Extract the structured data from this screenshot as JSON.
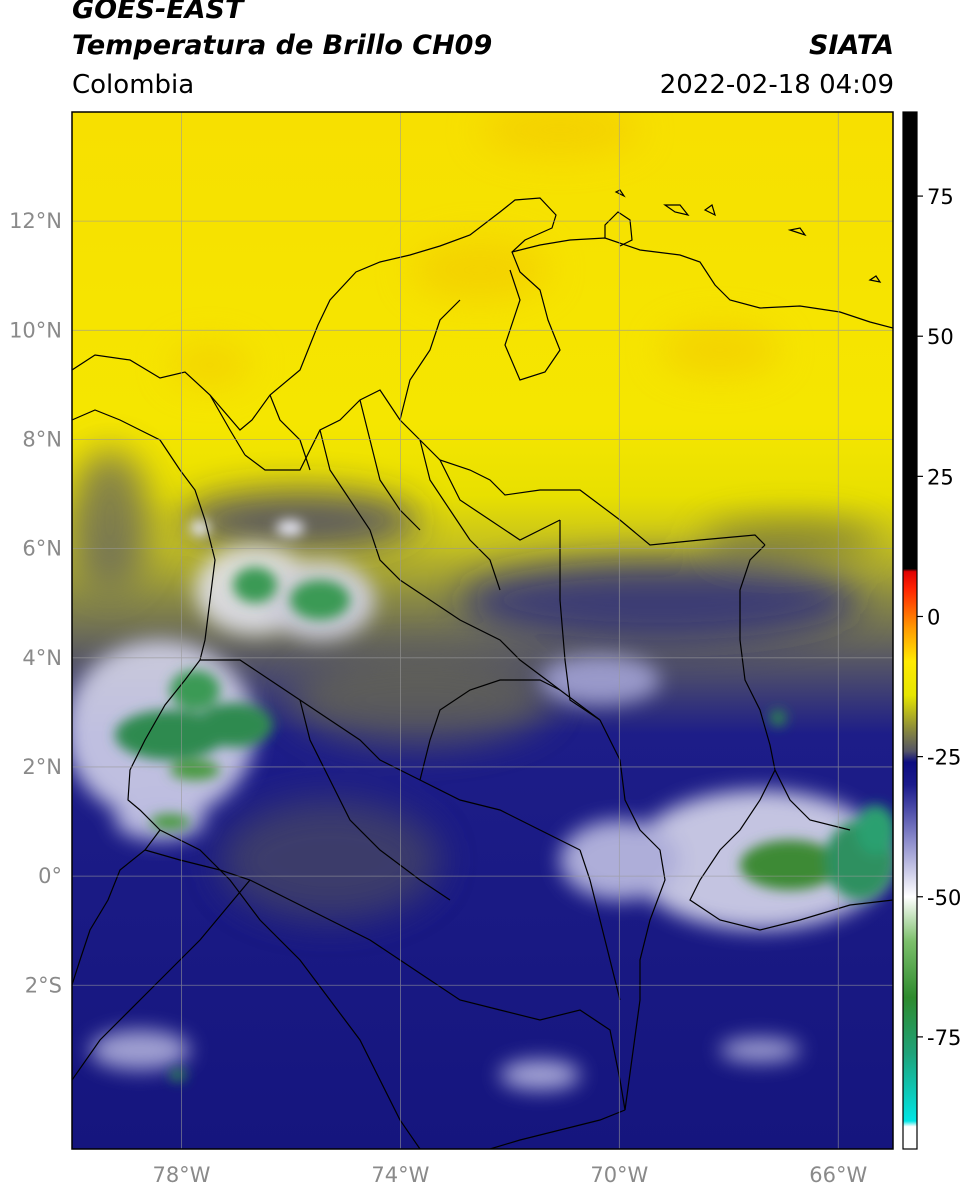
{
  "header": {
    "satellite": "GOES-EAST",
    "product": "Temperatura de Brillo CH09",
    "region": "Colombia",
    "agency": "SIATA",
    "datetime": "2022-02-18 04:09"
  },
  "map": {
    "lon_range": [
      -80,
      -65
    ],
    "lat_range": [
      -5,
      14
    ],
    "lat_ticks": [
      {
        "value": 12,
        "label": "12°N"
      },
      {
        "value": 10,
        "label": "10°N"
      },
      {
        "value": 8,
        "label": "8°N"
      },
      {
        "value": 6,
        "label": "6°N"
      },
      {
        "value": 4,
        "label": "4°N"
      },
      {
        "value": 2,
        "label": "2°N"
      },
      {
        "value": 0,
        "label": "0°"
      },
      {
        "value": -2,
        "label": "2°S"
      }
    ],
    "lon_ticks": [
      {
        "value": -78,
        "label": "78°W"
      },
      {
        "value": -74,
        "label": "74°W"
      },
      {
        "value": -70,
        "label": "70°W"
      },
      {
        "value": -66,
        "label": "66°W"
      }
    ],
    "grid": true
  },
  "colorbar": {
    "range": [
      -95,
      90
    ],
    "ticks": [
      {
        "value": 75,
        "label": "75"
      },
      {
        "value": 50,
        "label": "50"
      },
      {
        "value": 25,
        "label": "25"
      },
      {
        "value": 0,
        "label": "0"
      },
      {
        "value": -25,
        "label": "-25"
      },
      {
        "value": -50,
        "label": "-50"
      },
      {
        "value": -75,
        "label": "-75"
      }
    ],
    "stops": [
      {
        "value": -95,
        "color": "#ffffff"
      },
      {
        "value": -91,
        "color": "#ffffff"
      },
      {
        "value": -90,
        "color": "#00e5e5"
      },
      {
        "value": -78,
        "color": "#1fa37a"
      },
      {
        "value": -68,
        "color": "#2e8b2e"
      },
      {
        "value": -58,
        "color": "#7bbf6a"
      },
      {
        "value": -50,
        "color": "#ffffff"
      },
      {
        "value": -40,
        "color": "#8c8ccc"
      },
      {
        "value": -30,
        "color": "#1a1a8c"
      },
      {
        "value": -26,
        "color": "#0d0d80"
      },
      {
        "value": -24,
        "color": "#555566"
      },
      {
        "value": -20,
        "color": "#8c8c3a"
      },
      {
        "value": -14,
        "color": "#e6e600"
      },
      {
        "value": -8,
        "color": "#ffea00"
      },
      {
        "value": -2,
        "color": "#ff9900"
      },
      {
        "value": 5,
        "color": "#ff2200"
      },
      {
        "value": 8,
        "color": "#e00000"
      },
      {
        "value": 8.5,
        "color": "#000000"
      },
      {
        "value": 90,
        "color": "#000000"
      }
    ]
  },
  "colors": {
    "clear_warm": "#f5e400",
    "transition": "#7a7a40",
    "moist_mid": "#1a1a8a",
    "high_cloud": "#e8e8f5",
    "cold_top": "#2e8b4a",
    "coast_border": "#000000"
  }
}
